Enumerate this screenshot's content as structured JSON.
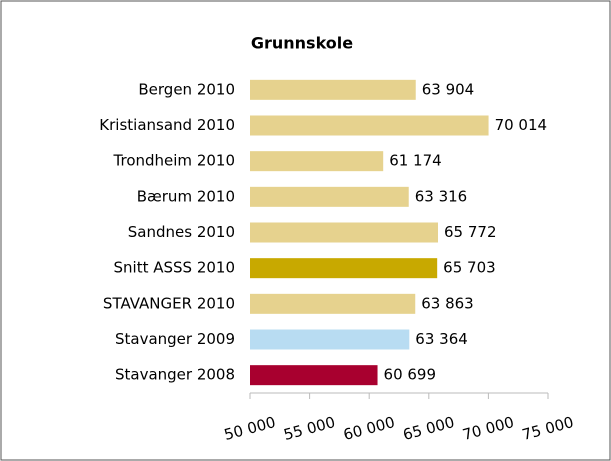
{
  "chart_data": {
    "type": "hbar",
    "title": "Grunnskole",
    "categories": [
      "Bergen 2010",
      "Kristiansand 2010",
      "Trondheim 2010",
      "Bærum 2010",
      "Sandnes 2010",
      "Snitt ASSS 2010",
      "STAVANGER 2010",
      "Stavanger 2009",
      "Stavanger 2008"
    ],
    "values": [
      63904,
      70014,
      61174,
      63316,
      65772,
      65703,
      63863,
      63364,
      60699
    ],
    "value_labels": [
      "63 904",
      "70 014",
      "61 174",
      "63 316",
      "65 772",
      "65 703",
      "63 863",
      "63 364",
      "60 699"
    ],
    "colors": [
      "#e6d28e",
      "#e6d28e",
      "#e6d28e",
      "#e6d28e",
      "#e6d28e",
      "#c8a900",
      "#e6d28e",
      "#b8dcf2",
      "#a8002f"
    ],
    "xlim": [
      50000,
      75000
    ],
    "xticks": [
      {
        "value": 50000,
        "label": "50 000"
      },
      {
        "value": 55000,
        "label": "55 000"
      },
      {
        "value": 60000,
        "label": "60 000"
      },
      {
        "value": 65000,
        "label": "65 000"
      },
      {
        "value": 70000,
        "label": "70 000"
      },
      {
        "value": 75000,
        "label": "75 000"
      }
    ]
  }
}
